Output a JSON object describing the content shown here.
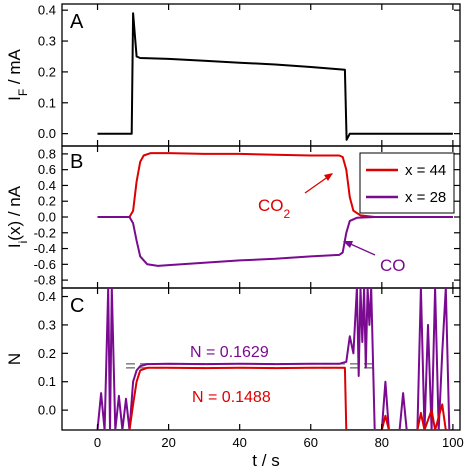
{
  "chart_data": [
    {
      "panel": "A",
      "type": "line",
      "ylabel": "I_F / mA",
      "ylabel_main": "I",
      "ylabel_sub": "F",
      "ylabel_rest": " / mA",
      "xlim": [
        -10,
        102
      ],
      "ylim": [
        -0.04,
        0.42
      ],
      "yticks": [
        "0.0",
        "0.1",
        "0.2",
        "0.3",
        "0.4"
      ],
      "ytick_values": [
        0.0,
        0.1,
        0.2,
        0.3,
        0.4
      ],
      "series": [
        {
          "color": "#000000",
          "points": [
            [
              0,
              0
            ],
            [
              9.6,
              0
            ],
            [
              10,
              0.39
            ],
            [
              11,
              0.25
            ],
            [
              12,
              0.245
            ],
            [
              20,
              0.242
            ],
            [
              30,
              0.236
            ],
            [
              40,
              0.23
            ],
            [
              50,
              0.224
            ],
            [
              60,
              0.216
            ],
            [
              69.6,
              0.207
            ],
            [
              70.1,
              -0.02
            ],
            [
              71,
              0.0
            ],
            [
              100,
              0.0
            ]
          ]
        }
      ]
    },
    {
      "panel": "B",
      "type": "line",
      "ylabel": "I_i(x) / nA",
      "ylabel_main": "I",
      "ylabel_sub": "i",
      "ylabel_rest": "(x) / nA",
      "xlim": [
        -10,
        102
      ],
      "ylim": [
        -0.9,
        0.9
      ],
      "yticks": [
        "0.8",
        "0.6",
        "0.4",
        "0.2",
        "0.0",
        "-0.2",
        "-0.4",
        "-0.6",
        "-0.8"
      ],
      "ytick_values": [
        0.8,
        0.6,
        0.4,
        0.2,
        0.0,
        -0.2,
        -0.4,
        -0.6,
        -0.8
      ],
      "legend": {
        "location": "top-right",
        "entries": [
          "x = 44",
          "x = 28"
        ]
      },
      "annotations": [
        {
          "text_main": "CO",
          "text_sub": "2",
          "color": "#dd0000"
        },
        {
          "text_main": "CO",
          "text_sub": "",
          "color": "#7a0a90"
        }
      ],
      "series": [
        {
          "name": "x = 44",
          "color": "#dd0000",
          "points": [
            [
              0,
              0
            ],
            [
              9,
              0
            ],
            [
              10,
              0.08
            ],
            [
              11,
              0.45
            ],
            [
              12,
              0.7
            ],
            [
              13,
              0.78
            ],
            [
              15,
              0.81
            ],
            [
              20,
              0.81
            ],
            [
              30,
              0.8
            ],
            [
              40,
              0.8
            ],
            [
              50,
              0.79
            ],
            [
              60,
              0.78
            ],
            [
              68,
              0.78
            ],
            [
              69,
              0.76
            ],
            [
              70,
              0.6
            ],
            [
              71,
              0.25
            ],
            [
              72,
              0.08
            ],
            [
              74,
              0.02
            ],
            [
              78,
              0
            ],
            [
              100,
              0
            ]
          ]
        },
        {
          "name": "x = 28",
          "color": "#7a0a90",
          "points": [
            [
              0,
              0
            ],
            [
              9,
              0
            ],
            [
              10,
              -0.08
            ],
            [
              11,
              -0.3
            ],
            [
              12,
              -0.5
            ],
            [
              14,
              -0.6
            ],
            [
              17,
              -0.62
            ],
            [
              20,
              -0.61
            ],
            [
              30,
              -0.58
            ],
            [
              40,
              -0.55
            ],
            [
              50,
              -0.53
            ],
            [
              60,
              -0.5
            ],
            [
              68,
              -0.48
            ],
            [
              69,
              -0.45
            ],
            [
              70,
              -0.2
            ],
            [
              71,
              -0.05
            ],
            [
              73,
              -0.01
            ],
            [
              78,
              0
            ],
            [
              100,
              0
            ]
          ]
        }
      ]
    },
    {
      "panel": "C",
      "type": "line",
      "ylabel": "N",
      "xlabel": "t / s",
      "xlim": [
        -10,
        102
      ],
      "ylim": [
        -0.07,
        0.43
      ],
      "xticks": [
        "0",
        "20",
        "40",
        "60",
        "80",
        "100"
      ],
      "xtick_values": [
        0,
        20,
        40,
        60,
        80,
        100
      ],
      "yticks": [
        "0.0",
        "0.1",
        "0.2",
        "0.3",
        "0.4"
      ],
      "ytick_values": [
        0.0,
        0.1,
        0.2,
        0.3,
        0.4
      ],
      "reference_lines": [
        0.1629,
        0.1488
      ],
      "labels": [
        {
          "text": "N = 0.1629",
          "color": "#7a0a90"
        },
        {
          "text": "N = 0.1488",
          "color": "#dd0000"
        }
      ],
      "series": [
        {
          "color": "#7a0a90",
          "points": [
            [
              0,
              -0.07
            ],
            [
              1,
              0.06
            ],
            [
              2,
              -0.07
            ],
            [
              3,
              0.43
            ],
            [
              3.5,
              -0.07
            ],
            [
              4,
              0.43
            ],
            [
              5,
              -0.07
            ],
            [
              6,
              0.05
            ],
            [
              7,
              -0.07
            ],
            [
              8,
              0.04
            ],
            [
              9,
              -0.07
            ],
            [
              10,
              0.1
            ],
            [
              11,
              0.14
            ],
            [
              12,
              0.155
            ],
            [
              14,
              0.162
            ],
            [
              20,
              0.163
            ],
            [
              30,
              0.162
            ],
            [
              40,
              0.163
            ],
            [
              50,
              0.162
            ],
            [
              60,
              0.163
            ],
            [
              68,
              0.163
            ],
            [
              70,
              0.17
            ],
            [
              71,
              0.26
            ],
            [
              72,
              0.2
            ],
            [
              73,
              0.43
            ],
            [
              73.5,
              0.12
            ],
            [
              74,
              0.43
            ],
            [
              74.5,
              0.24
            ],
            [
              75,
              0.43
            ],
            [
              75.5,
              0.15
            ],
            [
              76,
              0.43
            ],
            [
              76.5,
              0.3
            ],
            [
              77,
              0.43
            ],
            [
              78,
              -0.07
            ],
            [
              80,
              -0.07
            ],
            [
              81,
              0.1
            ],
            [
              82,
              -0.07
            ],
            [
              85,
              -0.07
            ],
            [
              86,
              0.06
            ],
            [
              87,
              -0.07
            ],
            [
              90,
              -0.07
            ],
            [
              91,
              0.43
            ],
            [
              92,
              -0.07
            ],
            [
              93,
              0.3
            ],
            [
              94,
              -0.07
            ],
            [
              95,
              0.43
            ],
            [
              96,
              -0.07
            ],
            [
              97,
              0.2
            ],
            [
              98,
              0.43
            ],
            [
              99,
              -0.07
            ],
            [
              100,
              -0.07
            ]
          ]
        },
        {
          "color": "#dd0000",
          "points": [
            [
              0,
              -0.07
            ],
            [
              9,
              -0.07
            ],
            [
              10,
              0.02
            ],
            [
              11,
              0.1
            ],
            [
              12,
              0.14
            ],
            [
              14,
              0.149
            ],
            [
              20,
              0.149
            ],
            [
              30,
              0.148
            ],
            [
              40,
              0.149
            ],
            [
              50,
              0.148
            ],
            [
              60,
              0.149
            ],
            [
              69,
              0.149
            ],
            [
              69.6,
              0.149
            ],
            [
              70,
              -0.07
            ],
            [
              80,
              -0.07
            ],
            [
              81,
              -0.02
            ],
            [
              82,
              -0.07
            ],
            [
              90,
              -0.07
            ],
            [
              91,
              -0.01
            ],
            [
              92,
              -0.07
            ],
            [
              94,
              0.0
            ],
            [
              95,
              -0.07
            ],
            [
              97,
              0.02
            ],
            [
              98,
              -0.07
            ],
            [
              100,
              -0.07
            ]
          ]
        }
      ]
    }
  ]
}
